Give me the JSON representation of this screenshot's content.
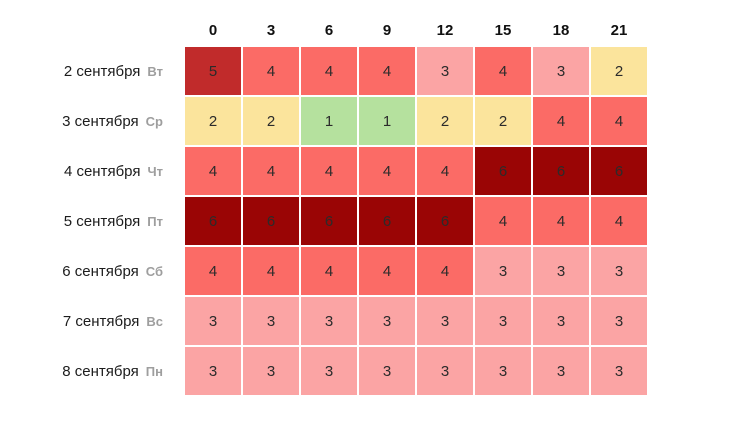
{
  "table": {
    "hours": [
      "0",
      "3",
      "6",
      "9",
      "12",
      "15",
      "18",
      "21"
    ],
    "rows": [
      {
        "date": "2 сентября",
        "weekday": "Вт",
        "values": [
          5,
          4,
          4,
          4,
          3,
          4,
          3,
          2
        ]
      },
      {
        "date": "3 сентября",
        "weekday": "Ср",
        "values": [
          2,
          2,
          1,
          1,
          2,
          2,
          4,
          4
        ]
      },
      {
        "date": "4 сентября",
        "weekday": "Чт",
        "values": [
          4,
          4,
          4,
          4,
          4,
          6,
          6,
          6
        ]
      },
      {
        "date": "5 сентября",
        "weekday": "Пт",
        "values": [
          6,
          6,
          6,
          6,
          6,
          4,
          4,
          4
        ]
      },
      {
        "date": "6 сентября",
        "weekday": "Сб",
        "values": [
          4,
          4,
          4,
          4,
          4,
          3,
          3,
          3
        ]
      },
      {
        "date": "7 сентября",
        "weekday": "Вс",
        "values": [
          3,
          3,
          3,
          3,
          3,
          3,
          3,
          3
        ]
      },
      {
        "date": "8 сентября",
        "weekday": "Пн",
        "values": [
          3,
          3,
          3,
          3,
          3,
          3,
          3,
          3
        ]
      }
    ],
    "value_colors": {
      "1": "#b5e19e",
      "2": "#fbe49c",
      "3": "#fba4a4",
      "4": "#fb6b66",
      "5": "#c12b2b",
      "6": "#9a0505"
    }
  },
  "chart_data": {
    "type": "heatmap",
    "title": "",
    "x": [
      "0",
      "3",
      "6",
      "9",
      "12",
      "15",
      "18",
      "21"
    ],
    "y": [
      "2 сентября Вт",
      "3 сентября Ср",
      "4 сентября Чт",
      "5 сентября Пт",
      "6 сентября Сб",
      "7 сентября Вс",
      "8 сентября Пн"
    ],
    "values": [
      [
        5,
        4,
        4,
        4,
        3,
        4,
        3,
        2
      ],
      [
        2,
        2,
        1,
        1,
        2,
        2,
        4,
        4
      ],
      [
        4,
        4,
        4,
        4,
        4,
        6,
        6,
        6
      ],
      [
        6,
        6,
        6,
        6,
        6,
        4,
        4,
        4
      ],
      [
        4,
        4,
        4,
        4,
        4,
        3,
        3,
        3
      ],
      [
        3,
        3,
        3,
        3,
        3,
        3,
        3,
        3
      ],
      [
        3,
        3,
        3,
        3,
        3,
        3,
        3,
        3
      ]
    ],
    "value_range": [
      1,
      6
    ],
    "colorscale": {
      "1": "#b5e19e",
      "2": "#fbe49c",
      "3": "#fba4a4",
      "4": "#fb6b66",
      "5": "#c12b2b",
      "6": "#9a0505"
    },
    "grid": false,
    "legend": "none"
  }
}
